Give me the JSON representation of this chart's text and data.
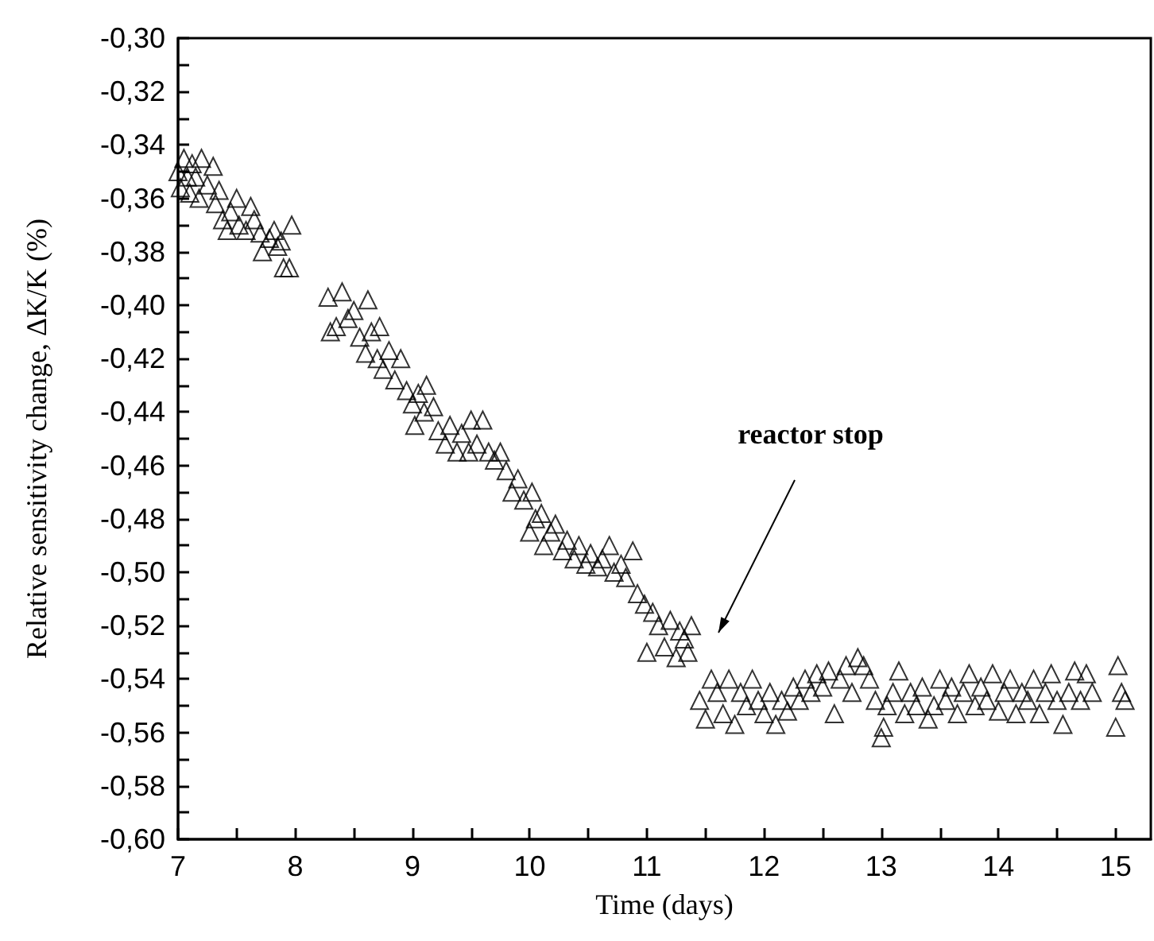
{
  "chart_data": {
    "type": "scatter",
    "xlabel": "Time (days)",
    "ylabel": "Relative sensitivity change, ΔK/K (%)",
    "marker": "triangle",
    "grid": false,
    "xlim": [
      7,
      15.3
    ],
    "xticks": [
      7,
      {
        "value": 7.5,
        "label": null
      },
      8,
      {
        "value": 8.5,
        "label": null
      },
      9,
      {
        "value": 9.5,
        "label": null
      },
      10,
      {
        "value": 10.5,
        "label": null
      },
      11,
      {
        "value": 11.5,
        "label": null
      },
      12,
      {
        "value": 12.5,
        "label": null
      },
      13,
      {
        "value": 13.5,
        "label": null
      },
      14,
      {
        "value": 14.5,
        "label": null
      },
      15
    ],
    "ylim": [
      -0.6,
      -0.3
    ],
    "yticks": [
      {
        "value": -0.6,
        "label": "-0,60"
      },
      {
        "value": -0.59,
        "label": null
      },
      {
        "value": -0.58,
        "label": "-0,58"
      },
      {
        "value": -0.57,
        "label": null
      },
      {
        "value": -0.56,
        "label": "-0,56"
      },
      {
        "value": -0.55,
        "label": null
      },
      {
        "value": -0.54,
        "label": "-0,54"
      },
      {
        "value": -0.53,
        "label": null
      },
      {
        "value": -0.52,
        "label": "-0,52"
      },
      {
        "value": -0.51,
        "label": null
      },
      {
        "value": -0.5,
        "label": "-0,50"
      },
      {
        "value": -0.49,
        "label": null
      },
      {
        "value": -0.48,
        "label": "-0,48"
      },
      {
        "value": -0.47,
        "label": null
      },
      {
        "value": -0.46,
        "label": "-0,46"
      },
      {
        "value": -0.45,
        "label": null
      },
      {
        "value": -0.44,
        "label": "-0,44"
      },
      {
        "value": -0.43,
        "label": null
      },
      {
        "value": -0.42,
        "label": "-0,42"
      },
      {
        "value": -0.41,
        "label": null
      },
      {
        "value": -0.4,
        "label": "-0,40"
      },
      {
        "value": -0.39,
        "label": null
      },
      {
        "value": -0.38,
        "label": "-0,38"
      },
      {
        "value": -0.37,
        "label": null
      },
      {
        "value": -0.36,
        "label": "-0,36"
      },
      {
        "value": -0.35,
        "label": null
      },
      {
        "value": -0.34,
        "label": "-0,34"
      },
      {
        "value": -0.33,
        "label": null
      },
      {
        "value": -0.32,
        "label": "-0,32"
      },
      {
        "value": -0.31,
        "label": null
      },
      {
        "value": -0.3,
        "label": "-0,30"
      }
    ],
    "annotations": [
      "reactor stop"
    ],
    "series": [
      {
        "color": "#000000",
        "x": [
          7.0,
          7.02,
          7.05,
          7.08,
          7.1,
          7.12,
          7.15,
          7.18,
          7.2,
          7.25,
          7.3,
          7.32,
          7.35,
          7.38,
          7.42,
          7.45,
          7.5,
          7.52,
          7.58,
          7.62,
          7.65,
          7.7,
          7.72,
          7.78,
          7.82,
          7.85,
          7.88,
          7.9,
          7.95,
          7.97,
          8.28,
          8.3,
          8.35,
          8.4,
          8.45,
          8.5,
          8.55,
          8.6,
          8.62,
          8.65,
          8.7,
          8.72,
          8.75,
          8.8,
          8.85,
          8.9,
          8.95,
          9.0,
          9.02,
          9.05,
          9.1,
          9.12,
          9.18,
          9.22,
          9.28,
          9.32,
          9.38,
          9.42,
          9.48,
          9.5,
          9.55,
          9.6,
          9.65,
          9.7,
          9.75,
          9.8,
          9.85,
          9.9,
          9.95,
          10.0,
          10.02,
          10.05,
          10.1,
          10.12,
          10.18,
          10.22,
          10.28,
          10.32,
          10.38,
          10.42,
          10.48,
          10.52,
          10.58,
          10.62,
          10.68,
          10.72,
          10.78,
          10.82,
          10.88,
          10.92,
          10.98,
          11.0,
          11.05,
          11.1,
          11.15,
          11.2,
          11.25,
          11.28,
          11.32,
          11.35,
          11.38,
          11.45,
          11.5,
          11.55,
          11.6,
          11.65,
          11.7,
          11.75,
          11.8,
          11.85,
          11.9,
          11.95,
          12.0,
          12.05,
          12.1,
          12.15,
          12.2,
          12.25,
          12.3,
          12.35,
          12.4,
          12.45,
          12.5,
          12.55,
          12.6,
          12.65,
          12.7,
          12.75,
          12.8,
          12.85,
          12.9,
          12.95,
          13.0,
          13.02,
          13.05,
          13.1,
          13.15,
          13.2,
          13.25,
          13.3,
          13.35,
          13.4,
          13.45,
          13.5,
          13.55,
          13.6,
          13.65,
          13.7,
          13.75,
          13.8,
          13.85,
          13.9,
          13.95,
          14.0,
          14.05,
          14.1,
          14.15,
          14.2,
          14.25,
          14.3,
          14.35,
          14.4,
          14.45,
          14.5,
          14.55,
          14.6,
          14.65,
          14.7,
          14.75,
          14.8,
          15.0,
          15.02,
          15.05,
          15.08
        ],
        "values": [
          -0.35,
          -0.356,
          -0.345,
          -0.352,
          -0.358,
          -0.347,
          -0.352,
          -0.36,
          -0.345,
          -0.355,
          -0.348,
          -0.362,
          -0.357,
          -0.368,
          -0.372,
          -0.365,
          -0.36,
          -0.37,
          -0.372,
          -0.363,
          -0.368,
          -0.373,
          -0.38,
          -0.375,
          -0.372,
          -0.378,
          -0.376,
          -0.386,
          -0.386,
          -0.37,
          -0.397,
          -0.41,
          -0.408,
          -0.395,
          -0.405,
          -0.402,
          -0.412,
          -0.418,
          -0.398,
          -0.41,
          -0.42,
          -0.408,
          -0.424,
          -0.417,
          -0.428,
          -0.42,
          -0.432,
          -0.437,
          -0.445,
          -0.433,
          -0.44,
          -0.43,
          -0.438,
          -0.447,
          -0.452,
          -0.445,
          -0.455,
          -0.448,
          -0.455,
          -0.443,
          -0.452,
          -0.443,
          -0.455,
          -0.458,
          -0.455,
          -0.462,
          -0.47,
          -0.465,
          -0.473,
          -0.485,
          -0.47,
          -0.48,
          -0.478,
          -0.49,
          -0.485,
          -0.482,
          -0.492,
          -0.488,
          -0.495,
          -0.49,
          -0.497,
          -0.493,
          -0.498,
          -0.495,
          -0.49,
          -0.5,
          -0.497,
          -0.502,
          -0.492,
          -0.508,
          -0.512,
          -0.53,
          -0.515,
          -0.52,
          -0.528,
          -0.518,
          -0.532,
          -0.522,
          -0.525,
          -0.53,
          -0.52,
          -0.548,
          -0.555,
          -0.54,
          -0.545,
          -0.553,
          -0.54,
          -0.557,
          -0.545,
          -0.55,
          -0.54,
          -0.548,
          -0.553,
          -0.545,
          -0.557,
          -0.548,
          -0.552,
          -0.543,
          -0.548,
          -0.54,
          -0.545,
          -0.538,
          -0.543,
          -0.537,
          -0.553,
          -0.54,
          -0.535,
          -0.545,
          -0.532,
          -0.535,
          -0.54,
          -0.548,
          -0.562,
          -0.558,
          -0.55,
          -0.545,
          -0.537,
          -0.553,
          -0.545,
          -0.55,
          -0.543,
          -0.555,
          -0.55,
          -0.54,
          -0.548,
          -0.543,
          -0.553,
          -0.545,
          -0.538,
          -0.55,
          -0.543,
          -0.548,
          -0.538,
          -0.552,
          -0.545,
          -0.54,
          -0.553,
          -0.545,
          -0.548,
          -0.54,
          -0.553,
          -0.545,
          -0.538,
          -0.548,
          -0.557,
          -0.545,
          -0.537,
          -0.548,
          -0.538,
          -0.545,
          -0.558,
          -0.535,
          -0.545,
          -0.548
        ]
      }
    ]
  }
}
